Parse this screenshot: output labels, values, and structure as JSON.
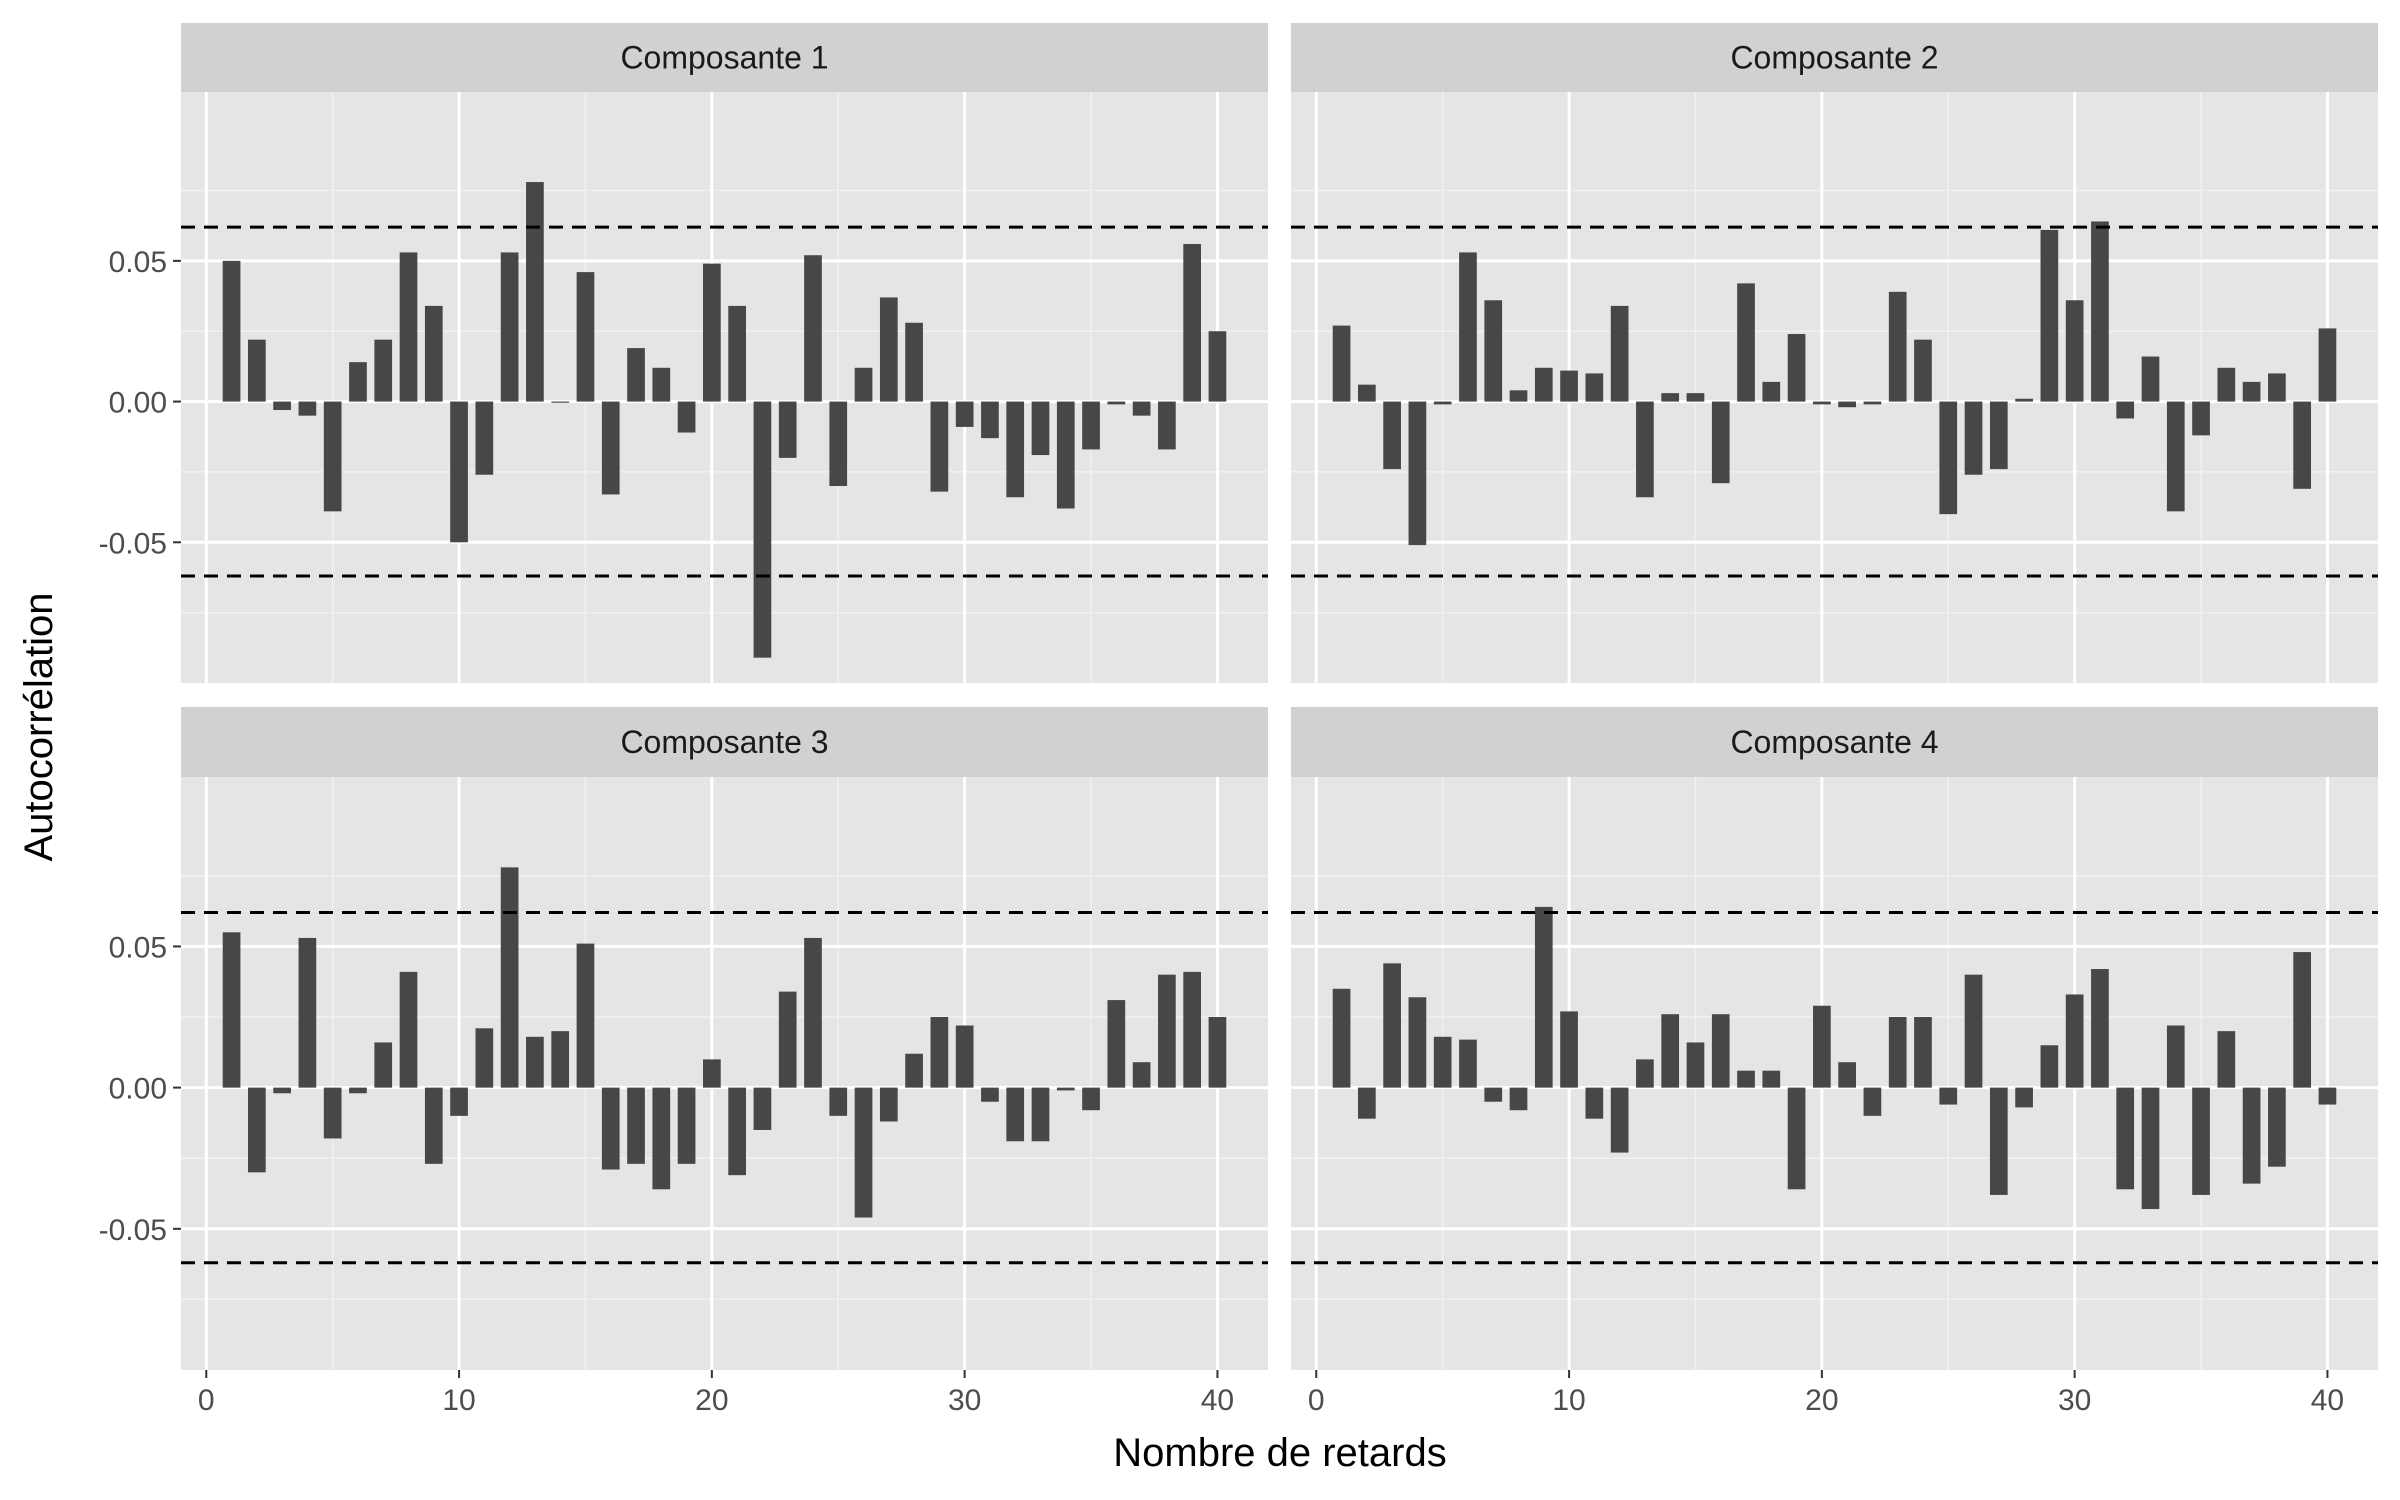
{
  "chart_data": {
    "type": "bar",
    "xlabel": "Nombre de retards",
    "ylabel": "Autocorrélation",
    "xlim": [
      -1,
      42
    ],
    "ylim": [
      -0.1,
      0.11
    ],
    "x_ticks": [
      0,
      10,
      20,
      30,
      40
    ],
    "y_ticks": [
      -0.05,
      0.0,
      0.05
    ],
    "y_tick_labels": [
      "-0.05",
      "0.00",
      "0.05"
    ],
    "x_tick_labels": [
      "0",
      "10",
      "20",
      "30",
      "40"
    ],
    "confidence_bound": 0.062,
    "grid": true,
    "panels": [
      {
        "title": "Composante 1",
        "lags": [
          1,
          2,
          3,
          4,
          5,
          6,
          7,
          8,
          9,
          10,
          11,
          12,
          13,
          14,
          15,
          16,
          17,
          18,
          19,
          20,
          21,
          22,
          23,
          24,
          25,
          26,
          27,
          28,
          29,
          30,
          31,
          32,
          33,
          34,
          35,
          36,
          37,
          38,
          39,
          40
        ],
        "values": [
          0.05,
          0.022,
          -0.003,
          -0.005,
          -0.039,
          0.014,
          0.022,
          0.053,
          0.034,
          -0.05,
          -0.026,
          0.053,
          0.078,
          0.0,
          0.046,
          -0.033,
          0.019,
          0.012,
          -0.011,
          0.049,
          0.034,
          -0.091,
          -0.02,
          0.052,
          -0.03,
          0.012,
          0.037,
          0.028,
          -0.032,
          -0.009,
          -0.013,
          -0.034,
          -0.019,
          -0.038,
          -0.017,
          -0.001,
          -0.005,
          -0.017,
          0.056,
          0.025
        ]
      },
      {
        "title": "Composante 2",
        "lags": [
          1,
          2,
          3,
          4,
          5,
          6,
          7,
          8,
          9,
          10,
          11,
          12,
          13,
          14,
          15,
          16,
          17,
          18,
          19,
          20,
          21,
          22,
          23,
          24,
          25,
          26,
          27,
          28,
          29,
          30,
          31,
          32,
          33,
          34,
          35,
          36,
          37,
          38,
          39,
          40
        ],
        "values": [
          0.027,
          0.006,
          -0.024,
          -0.051,
          -0.001,
          0.053,
          0.036,
          0.004,
          0.012,
          0.011,
          0.01,
          0.034,
          -0.034,
          0.003,
          0.003,
          -0.029,
          0.042,
          0.007,
          0.024,
          -0.001,
          -0.002,
          -0.001,
          0.039,
          0.022,
          -0.04,
          -0.026,
          -0.024,
          0.001,
          0.061,
          0.036,
          0.064,
          -0.006,
          0.016,
          -0.039,
          -0.012,
          0.012,
          0.007,
          0.01,
          -0.031,
          0.026
        ]
      },
      {
        "title": "Composante 3",
        "lags": [
          1,
          2,
          3,
          4,
          5,
          6,
          7,
          8,
          9,
          10,
          11,
          12,
          13,
          14,
          15,
          16,
          17,
          18,
          19,
          20,
          21,
          22,
          23,
          24,
          25,
          26,
          27,
          28,
          29,
          30,
          31,
          32,
          33,
          34,
          35,
          36,
          37,
          38,
          39,
          40
        ],
        "values": [
          0.055,
          -0.03,
          -0.002,
          0.053,
          -0.018,
          -0.002,
          0.016,
          0.041,
          -0.027,
          -0.01,
          0.021,
          0.078,
          0.018,
          0.02,
          0.051,
          -0.029,
          -0.027,
          -0.036,
          -0.027,
          0.01,
          -0.031,
          -0.015,
          0.034,
          0.053,
          -0.01,
          -0.046,
          -0.012,
          0.012,
          0.025,
          0.022,
          -0.005,
          -0.019,
          -0.019,
          -0.001,
          -0.008,
          0.031,
          0.009,
          0.04,
          0.041,
          0.025
        ]
      },
      {
        "title": "Composante 4",
        "lags": [
          1,
          2,
          3,
          4,
          5,
          6,
          7,
          8,
          9,
          10,
          11,
          12,
          13,
          14,
          15,
          16,
          17,
          18,
          19,
          20,
          21,
          22,
          23,
          24,
          25,
          26,
          27,
          28,
          29,
          30,
          31,
          32,
          33,
          34,
          35,
          36,
          37,
          38,
          39,
          40
        ],
        "values": [
          0.035,
          -0.011,
          0.044,
          0.032,
          0.018,
          0.017,
          -0.005,
          -0.008,
          0.064,
          0.027,
          -0.011,
          -0.023,
          0.01,
          0.026,
          0.016,
          0.026,
          0.006,
          0.006,
          -0.036,
          0.029,
          0.009,
          -0.01,
          0.025,
          0.025,
          -0.006,
          0.04,
          -0.038,
          -0.007,
          0.015,
          0.033,
          0.042,
          -0.036,
          -0.043,
          0.022,
          -0.038,
          0.02,
          -0.034,
          -0.028,
          0.048,
          -0.006
        ]
      }
    ]
  }
}
